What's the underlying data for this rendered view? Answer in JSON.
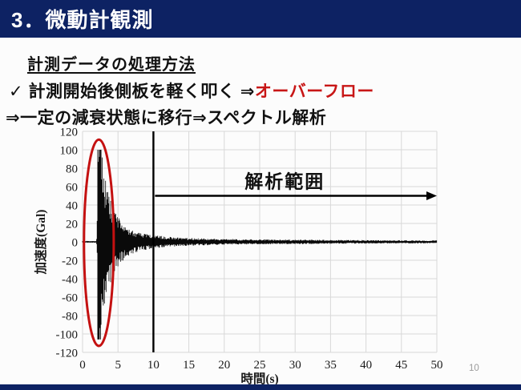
{
  "header": {
    "title": "3．微動計観測"
  },
  "body": {
    "heading": "計測データの処理方法",
    "line2_check": "✓",
    "line2_text": "計測開始後側板を軽く叩く",
    "line2_arrow": "⇒",
    "line2_red": "オーバーフロー",
    "line3": "⇒一定の減衰状態に移行⇒スペクトル解析"
  },
  "page_number": "10",
  "colors": {
    "navy": "#0d2263",
    "accent_red": "#c81616",
    "ellipse_red": "#c41111",
    "grid": "#d8d8d8",
    "trace": "#0a0a0a"
  },
  "chart_data": {
    "type": "line",
    "title": "",
    "xlabel": "時間(s)",
    "ylabel": "加速度(Gal)",
    "xlim": [
      0,
      50
    ],
    "ylim": [
      -120,
      120
    ],
    "x_ticks": [
      0,
      5,
      10,
      15,
      20,
      25,
      30,
      35,
      40,
      45,
      50
    ],
    "y_ticks": [
      120,
      100,
      80,
      60,
      40,
      20,
      0,
      -20,
      -40,
      -60,
      -80,
      -100,
      -120
    ],
    "grid": true,
    "legend": "none",
    "series": [
      {
        "name": "microtremor-waveform",
        "description": "Quiet baseline 0-2s, overflow impulse at ~2.1s clipped at +100/-106 Gal, exponential decay to steady ambient noise after ~10s",
        "clip_positive": 100,
        "clip_negative": -106,
        "envelope": [
          [
            0,
            1
          ],
          [
            1.9,
            1
          ],
          [
            2.05,
            8
          ],
          [
            2.1,
            105
          ],
          [
            2.55,
            105
          ],
          [
            2.8,
            92
          ],
          [
            3.0,
            80
          ],
          [
            3.3,
            66
          ],
          [
            3.6,
            55
          ],
          [
            4.0,
            44
          ],
          [
            4.5,
            34
          ],
          [
            5.0,
            27
          ],
          [
            5.5,
            22
          ],
          [
            6.0,
            18
          ],
          [
            6.5,
            15
          ],
          [
            7.0,
            13
          ],
          [
            8.0,
            10
          ],
          [
            9.0,
            8.5
          ],
          [
            10,
            7.5
          ],
          [
            11,
            6.5
          ],
          [
            12,
            5.5
          ],
          [
            13,
            5
          ],
          [
            15,
            4.2
          ],
          [
            17,
            3.8
          ],
          [
            20,
            3.2
          ],
          [
            23,
            2.8
          ],
          [
            26,
            2.6
          ],
          [
            30,
            2.4
          ],
          [
            34,
            2.2
          ],
          [
            38,
            2.0
          ],
          [
            42,
            1.8
          ],
          [
            46,
            1.7
          ],
          [
            50,
            1.6
          ]
        ]
      }
    ],
    "annotations": {
      "marker_line_x": 10,
      "analysis_range_label": "解析範囲",
      "analysis_range": {
        "x_start": 10,
        "x_end": 50,
        "y": 50
      },
      "highlight_ellipse": {
        "x_center": 2.3,
        "y_center": -1,
        "x_radius": 2.1,
        "y_radius": 112
      }
    }
  }
}
